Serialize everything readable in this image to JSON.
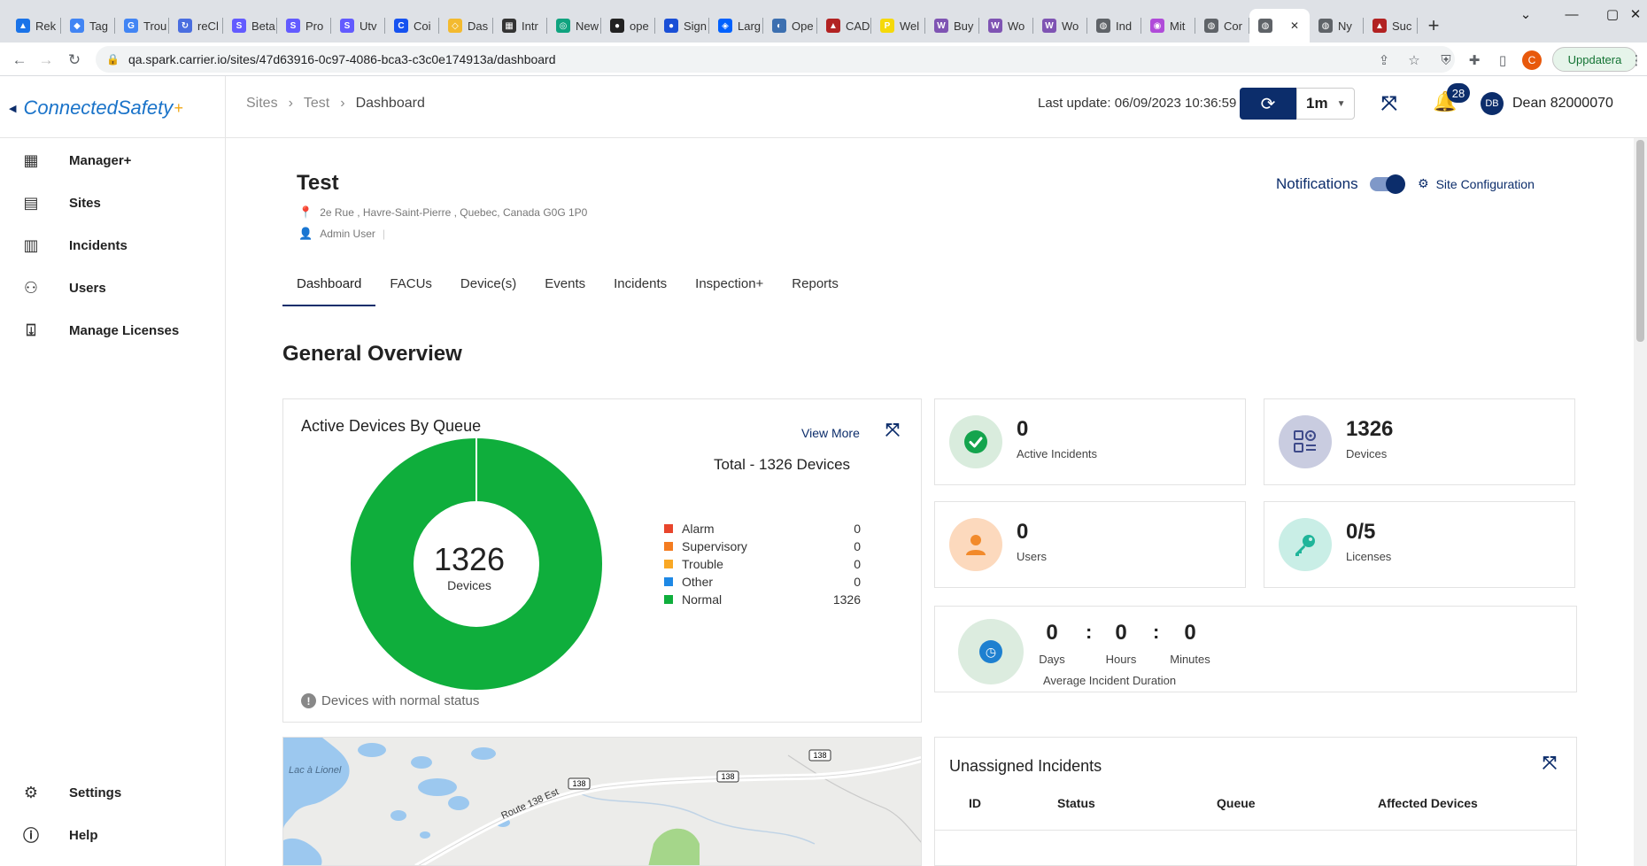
{
  "browser": {
    "tabs": [
      {
        "label": "Rek",
        "color": "#1a73e8",
        "glyph": "▲"
      },
      {
        "label": "Tag",
        "color": "#4285f4",
        "glyph": "◆"
      },
      {
        "label": "Trou",
        "color": "#4285f4",
        "glyph": "G"
      },
      {
        "label": "reCl",
        "color": "#4a6ee0",
        "glyph": "↻"
      },
      {
        "label": "Beta",
        "color": "#635bff",
        "glyph": "S"
      },
      {
        "label": "Pro",
        "color": "#635bff",
        "glyph": "S"
      },
      {
        "label": "Utv",
        "color": "#635bff",
        "glyph": "S"
      },
      {
        "label": "Coi",
        "color": "#1652f0",
        "glyph": "C"
      },
      {
        "label": "Das",
        "color": "#f3ba2f",
        "glyph": "◇"
      },
      {
        "label": "Intr",
        "color": "#333333",
        "glyph": "▦"
      },
      {
        "label": "New",
        "color": "#10a37f",
        "glyph": "◎"
      },
      {
        "label": "ope",
        "color": "#222222",
        "glyph": "●"
      },
      {
        "label": "Sign",
        "color": "#1a4fd6",
        "glyph": "●"
      },
      {
        "label": "Larg",
        "color": "#0061fe",
        "glyph": "◈"
      },
      {
        "label": "Ope",
        "color": "#3c6fb0",
        "glyph": "◐"
      },
      {
        "label": "CAD",
        "color": "#b22222",
        "glyph": "▲"
      },
      {
        "label": "Wel",
        "color": "#f5d90a",
        "glyph": "P"
      },
      {
        "label": "Buy",
        "color": "#7f54b3",
        "glyph": "W"
      },
      {
        "label": "Wo",
        "color": "#7f54b3",
        "glyph": "W"
      },
      {
        "label": "Wo",
        "color": "#7f54b3",
        "glyph": "W"
      },
      {
        "label": "Ind",
        "color": "#5f6368",
        "glyph": "◍"
      },
      {
        "label": "Mit",
        "color": "#b04bd9",
        "glyph": "◉"
      },
      {
        "label": "Cor",
        "color": "#5f6368",
        "glyph": "◍"
      },
      {
        "label": "",
        "color": "#5f6368",
        "glyph": "◍",
        "active": true
      },
      {
        "label": "Ny",
        "color": "#5f6368",
        "glyph": "◍"
      },
      {
        "label": "Suc",
        "color": "#b22222",
        "glyph": "▲"
      }
    ],
    "new_tab": "+",
    "close_tab": "✕",
    "url": "qa.spark.carrier.io/sites/47d63916-0c97-4086-bca3-c3c0e174913a/dashboard",
    "profile_initial": "C",
    "update_label": "Uppdatera"
  },
  "header": {
    "logo_text": "ConnectedSafety",
    "logo_plus": "+",
    "breadcrumb": [
      "Sites",
      "Test",
      "Dashboard"
    ],
    "last_update": "Last update: 06/09/2023 10:36:59",
    "interval": "1m",
    "notification_count": "28",
    "user_initials": "DB",
    "user_name": "Dean 82000070"
  },
  "sidebar": {
    "items": [
      {
        "label": "Manager+",
        "icon": "layout-icon"
      },
      {
        "label": "Sites",
        "icon": "sites-icon"
      },
      {
        "label": "Incidents",
        "icon": "incidents-icon"
      },
      {
        "label": "Users",
        "icon": "users-icon"
      },
      {
        "label": "Manage Licenses",
        "icon": "licenses-icon"
      }
    ],
    "bottom_items": [
      {
        "label": "Settings",
        "icon": "gear-icon"
      },
      {
        "label": "Help",
        "icon": "help-icon"
      }
    ]
  },
  "site": {
    "name": "Test",
    "address": "2e Rue , Havre-Saint-Pierre , Quebec, Canada G0G 1P0",
    "admin": "Admin User",
    "notifications_label": "Notifications",
    "notifications_on": true,
    "config_label": "Site Configuration"
  },
  "tabs": [
    "Dashboard",
    "FACUs",
    "Device(s)",
    "Events",
    "Incidents",
    "Inspection+",
    "Reports"
  ],
  "active_tab": "Dashboard",
  "overview": {
    "title": "General Overview",
    "chart_card": {
      "title": "Active Devices By Queue",
      "view_more": "View More",
      "total": "Total - 1326 Devices",
      "center_value": "1326",
      "center_label": "Devices",
      "note": "Devices with normal status"
    },
    "stats": [
      {
        "value": "0",
        "label": "Active Incidents",
        "icon": "check-circle-icon",
        "bg": "#d9ecdd",
        "fg": "#14a44d"
      },
      {
        "value": "1326",
        "label": "Devices",
        "icon": "device-icon",
        "bg": "#c9cce0",
        "fg": "#3e4a8a"
      },
      {
        "value": "0",
        "label": "Users",
        "icon": "user-icon",
        "bg": "#fcd9bd",
        "fg": "#f28a2b"
      },
      {
        "value": "0/5",
        "label": "Licenses",
        "icon": "key-icon",
        "bg": "#c9eee6",
        "fg": "#1fb59a"
      }
    ],
    "duration": {
      "days": "0",
      "hours": "0",
      "minutes": "0",
      "days_label": "Days",
      "hours_label": "Hours",
      "minutes_label": "Minutes",
      "label": "Average Incident Duration"
    },
    "map": {
      "lake_label": "Lac à Lionel",
      "road_label": "Route 138 Est",
      "shield_label": "138"
    },
    "unassigned": {
      "title": "Unassigned Incidents",
      "columns": [
        "ID",
        "Status",
        "Queue",
        "Affected Devices"
      ]
    }
  },
  "chart_data": {
    "type": "pie",
    "categories": [
      "Alarm",
      "Supervisory",
      "Trouble",
      "Other",
      "Normal"
    ],
    "values": [
      0,
      0,
      0,
      0,
      1326
    ],
    "colors": [
      "#e8452c",
      "#f47c20",
      "#f9a825",
      "#1e88e5",
      "#0fae3c"
    ],
    "legend_placement": "right",
    "donut": true
  }
}
